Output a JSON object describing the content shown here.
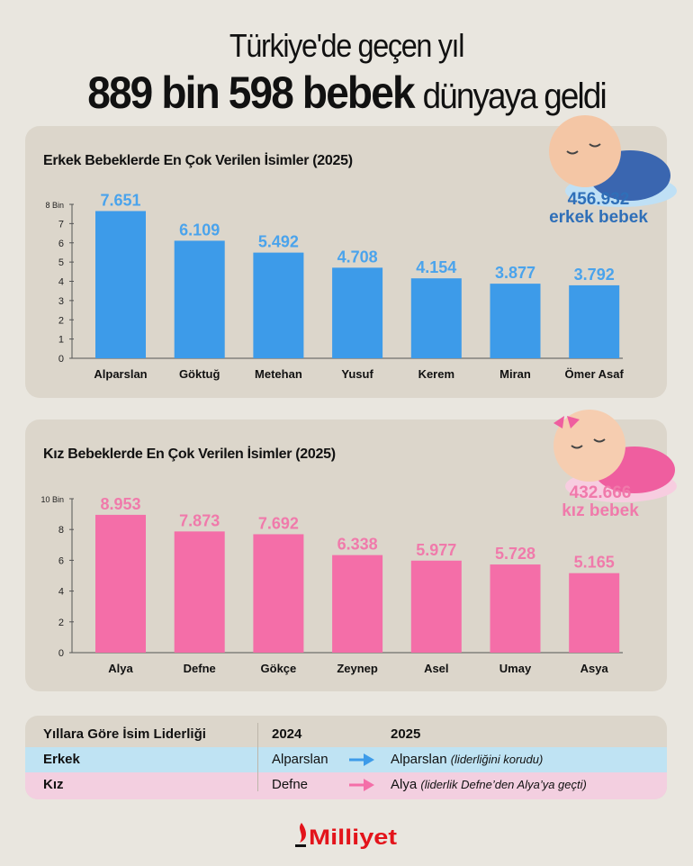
{
  "header": {
    "line1": "Türkiye'de geçen yıl",
    "bold": "889 bin 598 bebek",
    "light": "dünyaya geldi"
  },
  "colors": {
    "boy": "#3d9be9",
    "girl": "#f46ea8",
    "boy_text": "#2f6fb8",
    "girl_text": "#f07aab"
  },
  "chart_data": [
    {
      "type": "bar",
      "title": "Erkek Bebeklerde En Çok Verilen İsimler (2025)",
      "categories": [
        "Alparslan",
        "Göktuğ",
        "Metehan",
        "Yusuf",
        "Kerem",
        "Miran",
        "Ömer Asaf"
      ],
      "values": [
        7.651,
        6.109,
        5.492,
        4.708,
        4.154,
        3.877,
        3.792
      ],
      "value_labels": [
        "7.651",
        "6.109",
        "5.492",
        "4.708",
        "4.154",
        "3.877",
        "3.792"
      ],
      "ylim": [
        0,
        8
      ],
      "yticks": [
        "0",
        "1",
        "2",
        "3",
        "4",
        "5",
        "6",
        "7",
        "8 Bin"
      ],
      "ytick_values": [
        0,
        1,
        2,
        3,
        4,
        5,
        6,
        7,
        8
      ],
      "grid": false
    },
    {
      "type": "bar",
      "title": "Kız Bebeklerde En Çok Verilen İsimler (2025)",
      "categories": [
        "Alya",
        "Defne",
        "Gökçe",
        "Zeynep",
        "Asel",
        "Umay",
        "Asya"
      ],
      "values": [
        8.953,
        7.873,
        7.692,
        6.338,
        5.977,
        5.728,
        5.165
      ],
      "value_labels": [
        "8.953",
        "7.873",
        "7.692",
        "6.338",
        "5.977",
        "5.728",
        "5.165"
      ],
      "ylim": [
        0,
        10
      ],
      "yticks": [
        "0",
        "2",
        "4",
        "6",
        "8",
        "10 Bin"
      ],
      "ytick_values": [
        0,
        2,
        4,
        6,
        8,
        10
      ],
      "grid": false
    }
  ],
  "totals": {
    "boy_count": "456.932",
    "boy_label": "erkek bebek",
    "girl_count": "432.666",
    "girl_label": "kız bebek"
  },
  "leadership": {
    "title": "Yıllara Göre İsim Liderliği",
    "col2024": "2024",
    "col2025": "2025",
    "rows": [
      {
        "label": "Erkek",
        "y2024": "Alparslan",
        "y2025": "Alparslan",
        "note": "(liderliğini korudu)"
      },
      {
        "label": "Kız",
        "y2024": "Defne",
        "y2025": "Alya",
        "note": "(liderlik Defne’den Alya’ya geçti)"
      }
    ]
  },
  "logo": {
    "text": "Milliyet",
    "color": "#e3141b"
  }
}
